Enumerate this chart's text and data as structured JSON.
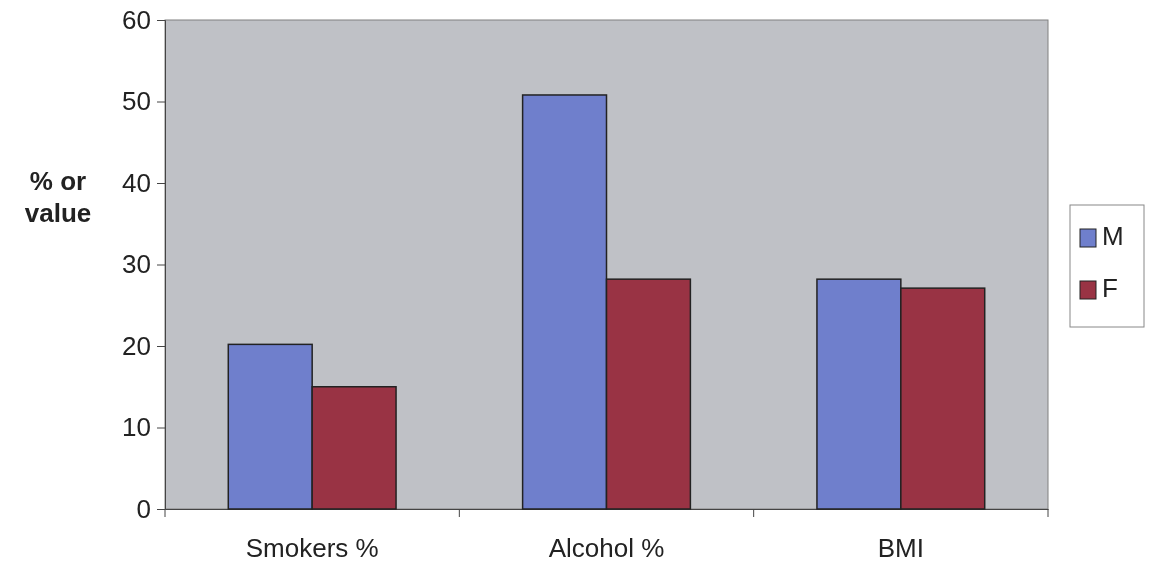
{
  "chart_data": {
    "type": "bar",
    "ylabel": "% or value",
    "categories": [
      "Smokers %",
      "Alcohol %",
      "BMI"
    ],
    "series": [
      {
        "name": "M",
        "color": "#6f7fcc",
        "values": [
          20.2,
          50.8,
          28.2
        ]
      },
      {
        "name": "F",
        "color": "#993344",
        "values": [
          15,
          28.2,
          27.1
        ]
      }
    ],
    "ylim": [
      0,
      60
    ],
    "yticks": [
      0,
      10,
      20,
      30,
      40,
      50,
      60
    ],
    "grid": false,
    "legend": "right"
  }
}
